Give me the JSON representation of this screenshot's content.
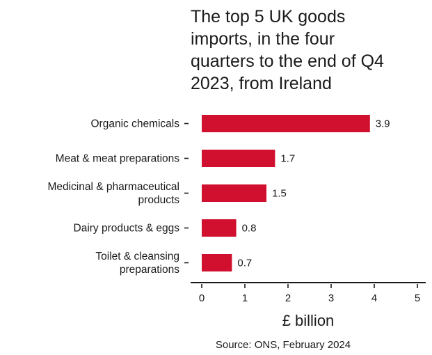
{
  "chart_data": {
    "type": "bar",
    "orientation": "horizontal",
    "title_lines": [
      "The top 5 UK goods",
      "imports, in the four",
      "quarters to the end of Q4",
      "2023, from Ireland"
    ],
    "categories": [
      [
        "Organic chemicals"
      ],
      [
        "Meat & meat preparations"
      ],
      [
        "Medicinal & pharmaceutical",
        "products"
      ],
      [
        "Dairy products & eggs"
      ],
      [
        "Toilet & cleansing",
        "preparations"
      ]
    ],
    "values": [
      3.9,
      1.7,
      1.5,
      0.8,
      0.7
    ],
    "value_labels": [
      "3.9",
      "1.7",
      "1.5",
      "0.8",
      "0.7"
    ],
    "xlim": [
      0,
      5
    ],
    "xticks": [
      0,
      1,
      2,
      3,
      4,
      5
    ],
    "xlabel": "£ billion",
    "source": "Source: ONS, February 2024",
    "bar_color": "#d0102e",
    "grid": false
  }
}
